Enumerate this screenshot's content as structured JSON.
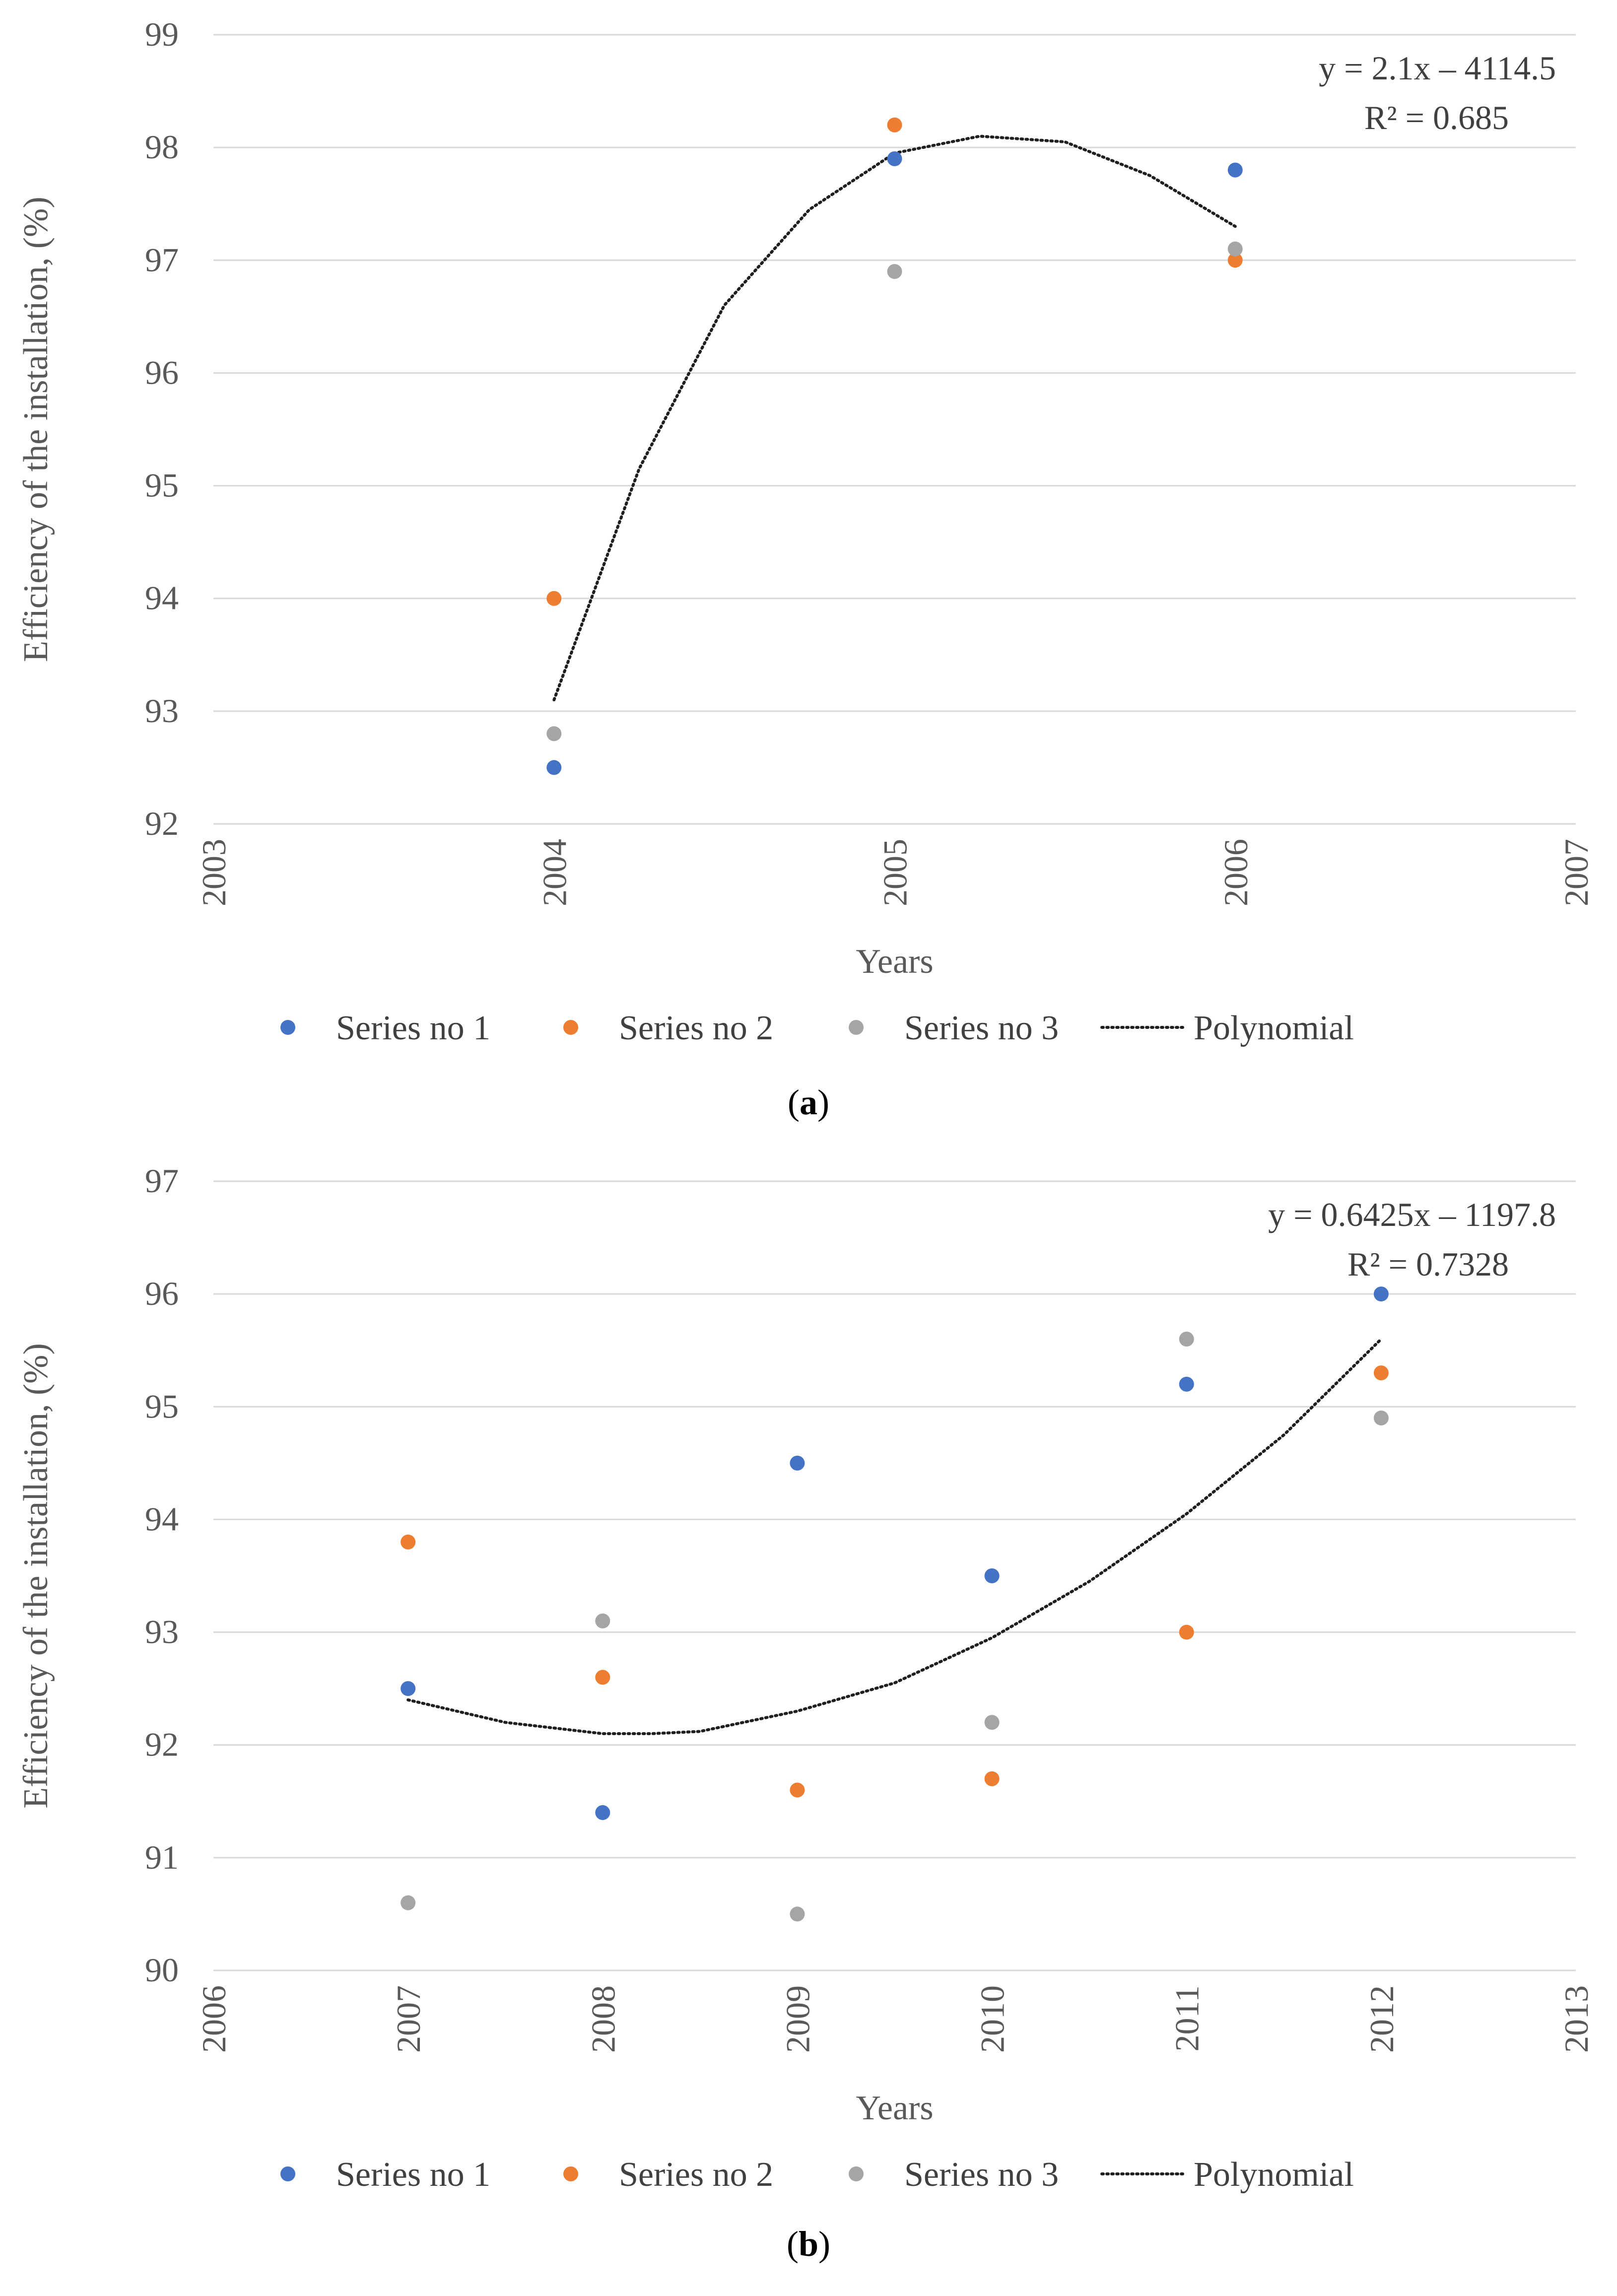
{
  "chart_data": [
    {
      "type": "scatter",
      "id": "a",
      "caption": "a",
      "xlabel": "Years",
      "ylabel": "Efficiency of the installation, (%)",
      "xlim": [
        2003,
        2007
      ],
      "ylim": [
        92,
        99
      ],
      "xticks": [
        "2003",
        "2004",
        "2005",
        "2006",
        "2007"
      ],
      "yticks": [
        "92",
        "93",
        "94",
        "95",
        "96",
        "97",
        "98",
        "99"
      ],
      "series": [
        {
          "name": "Series no 1",
          "color": "#4472C4",
          "x": [
            2004,
            2005,
            2006
          ],
          "y": [
            92.5,
            97.9,
            97.8
          ]
        },
        {
          "name": "Series no 2",
          "color": "#ED7D31",
          "x": [
            2004,
            2005,
            2006
          ],
          "y": [
            94.0,
            98.2,
            97.0
          ]
        },
        {
          "name": "Series no 3",
          "color": "#A5A5A5",
          "x": [
            2004,
            2005,
            2006
          ],
          "y": [
            92.8,
            96.9,
            97.1
          ]
        }
      ],
      "trendline": {
        "name": "Polynomial",
        "color": "#1f1f1f",
        "x": [
          2004,
          2004.25,
          2004.5,
          2004.75,
          2005,
          2005.25,
          2005.5,
          2005.75,
          2006
        ],
        "y": [
          93.1,
          95.15,
          96.6,
          97.45,
          97.95,
          98.1,
          98.05,
          97.75,
          97.3
        ],
        "equation": "y = 2.1x – 4114.5",
        "r2": "R² = 0.685"
      },
      "legend": {
        "position": "bottom"
      },
      "grid": true
    },
    {
      "type": "scatter",
      "id": "b",
      "caption": "b",
      "xlabel": "Years",
      "ylabel": "Efficiency of the installation, (%)",
      "xlim": [
        2006,
        2013
      ],
      "ylim": [
        90,
        97
      ],
      "xticks": [
        "2006",
        "2007",
        "2008",
        "2009",
        "2010",
        "2011",
        "2012",
        "2013"
      ],
      "yticks": [
        "90",
        "91",
        "92",
        "93",
        "94",
        "95",
        "96",
        "97"
      ],
      "series": [
        {
          "name": "Series no 1",
          "color": "#4472C4",
          "x": [
            2007,
            2008,
            2009,
            2010,
            2011,
            2012
          ],
          "y": [
            92.5,
            91.4,
            94.5,
            93.5,
            95.2,
            96.0
          ]
        },
        {
          "name": "Series no 2",
          "color": "#ED7D31",
          "x": [
            2007,
            2008,
            2009,
            2010,
            2011,
            2012
          ],
          "y": [
            93.8,
            92.6,
            91.6,
            91.7,
            93.0,
            95.3
          ]
        },
        {
          "name": "Series no 3",
          "color": "#A5A5A5",
          "x": [
            2007,
            2008,
            2009,
            2010,
            2011,
            2012
          ],
          "y": [
            90.6,
            93.1,
            90.5,
            92.2,
            95.6,
            94.9
          ]
        }
      ],
      "trendline": {
        "name": "Polynomial",
        "color": "#1f1f1f",
        "x": [
          2007,
          2007.5,
          2008,
          2008.25,
          2008.5,
          2009,
          2009.5,
          2010,
          2010.5,
          2011,
          2011.5,
          2012
        ],
        "y": [
          92.4,
          92.2,
          92.1,
          92.1,
          92.12,
          92.3,
          92.55,
          92.95,
          93.45,
          94.05,
          94.75,
          95.6
        ],
        "equation": "y = 0.6425x – 1197.8",
        "r2": "R² = 0.7328"
      },
      "legend": {
        "position": "bottom"
      },
      "grid": true
    }
  ]
}
